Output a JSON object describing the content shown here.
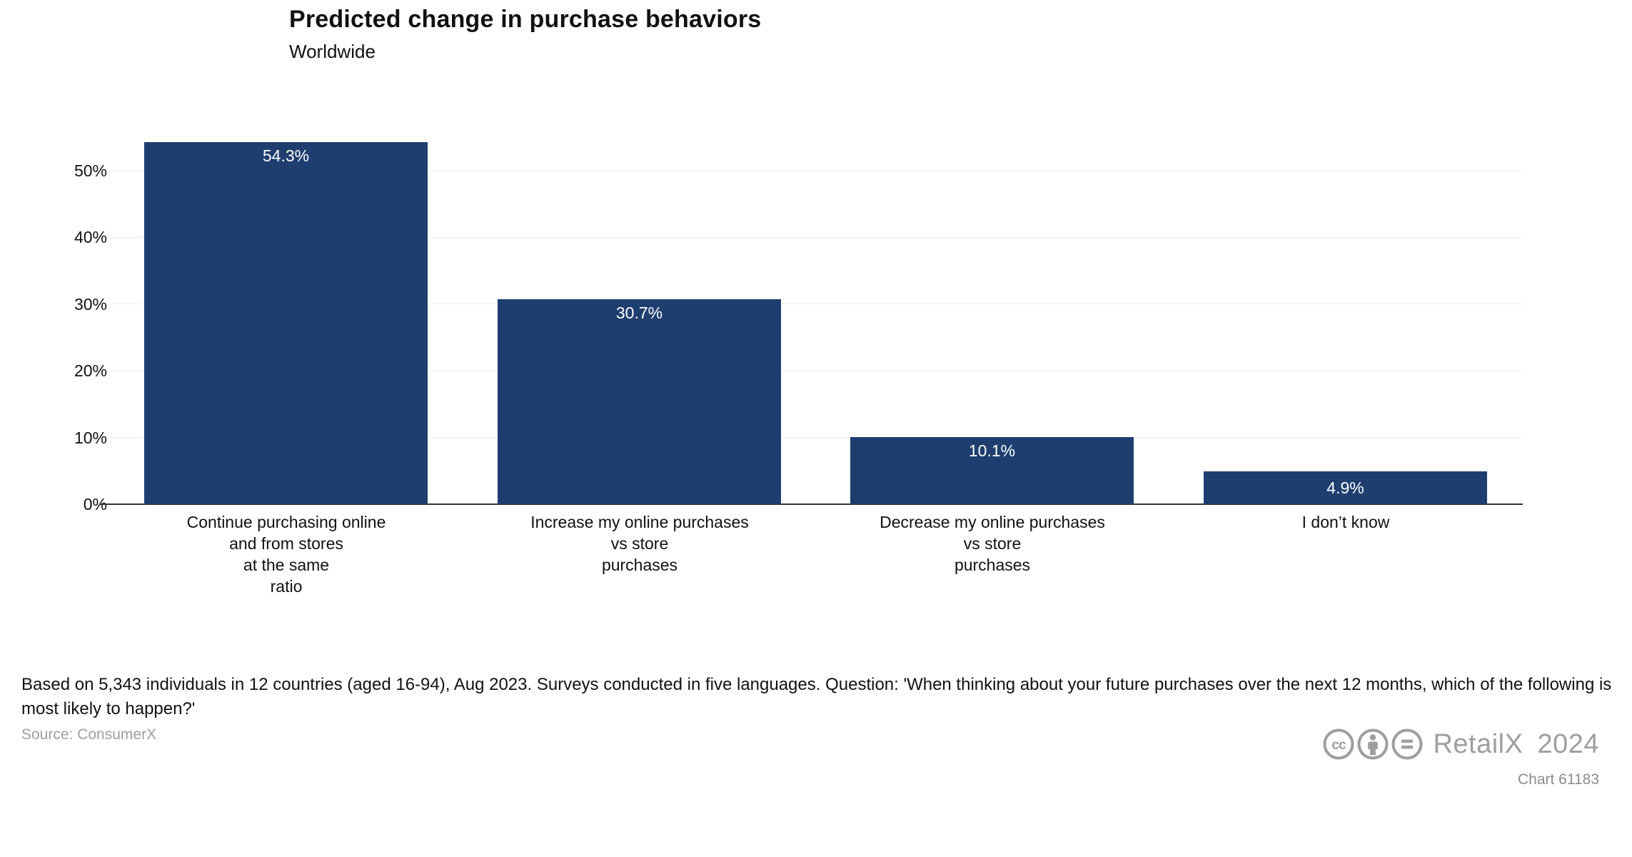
{
  "header": {
    "title": "Predicted change in purchase behaviors",
    "subtitle": "Worldwide"
  },
  "chart_data": {
    "type": "bar",
    "title": "Predicted change in purchase behaviors",
    "subtitle": "Worldwide",
    "categories": [
      "Continue purchasing online\nand from stores\nat the same\nratio",
      "Increase my online purchases\nvs store\npurchases",
      "Decrease my online purchases\nvs store\npurchases",
      "I don’t know"
    ],
    "values": [
      54.3,
      30.7,
      10.1,
      4.9
    ],
    "value_labels": [
      "54.3%",
      "30.7%",
      "10.1%",
      "4.9%"
    ],
    "xlabel": "",
    "ylabel": "",
    "ylim": [
      0,
      55
    ],
    "yticks": [
      0,
      10,
      20,
      30,
      40,
      50
    ],
    "ytick_labels": [
      "0%",
      "10%",
      "20%",
      "30%",
      "40%",
      "50%"
    ],
    "grid": true,
    "legend": false,
    "bar_color": "#1f3e70",
    "value_label_color": "#ffffff",
    "axis_color": "#333333",
    "grid_color": "#ececec"
  },
  "footer": {
    "note": "Based on 5,343 individuals in 12 countries (aged 16-94), Aug 2023. Surveys conducted in five languages. Question: 'When thinking about your future purchases over the next 12 months, which of the following is most likely to happen?'",
    "source": "Source: ConsumerX",
    "icons": [
      "cc-icon",
      "attribution-icon",
      "equals-icon"
    ],
    "cc_label": "cc",
    "brand": "RetailX",
    "year": "2024",
    "brand_gray": "#9e9e9e",
    "chart_id": "Chart 61183"
  }
}
